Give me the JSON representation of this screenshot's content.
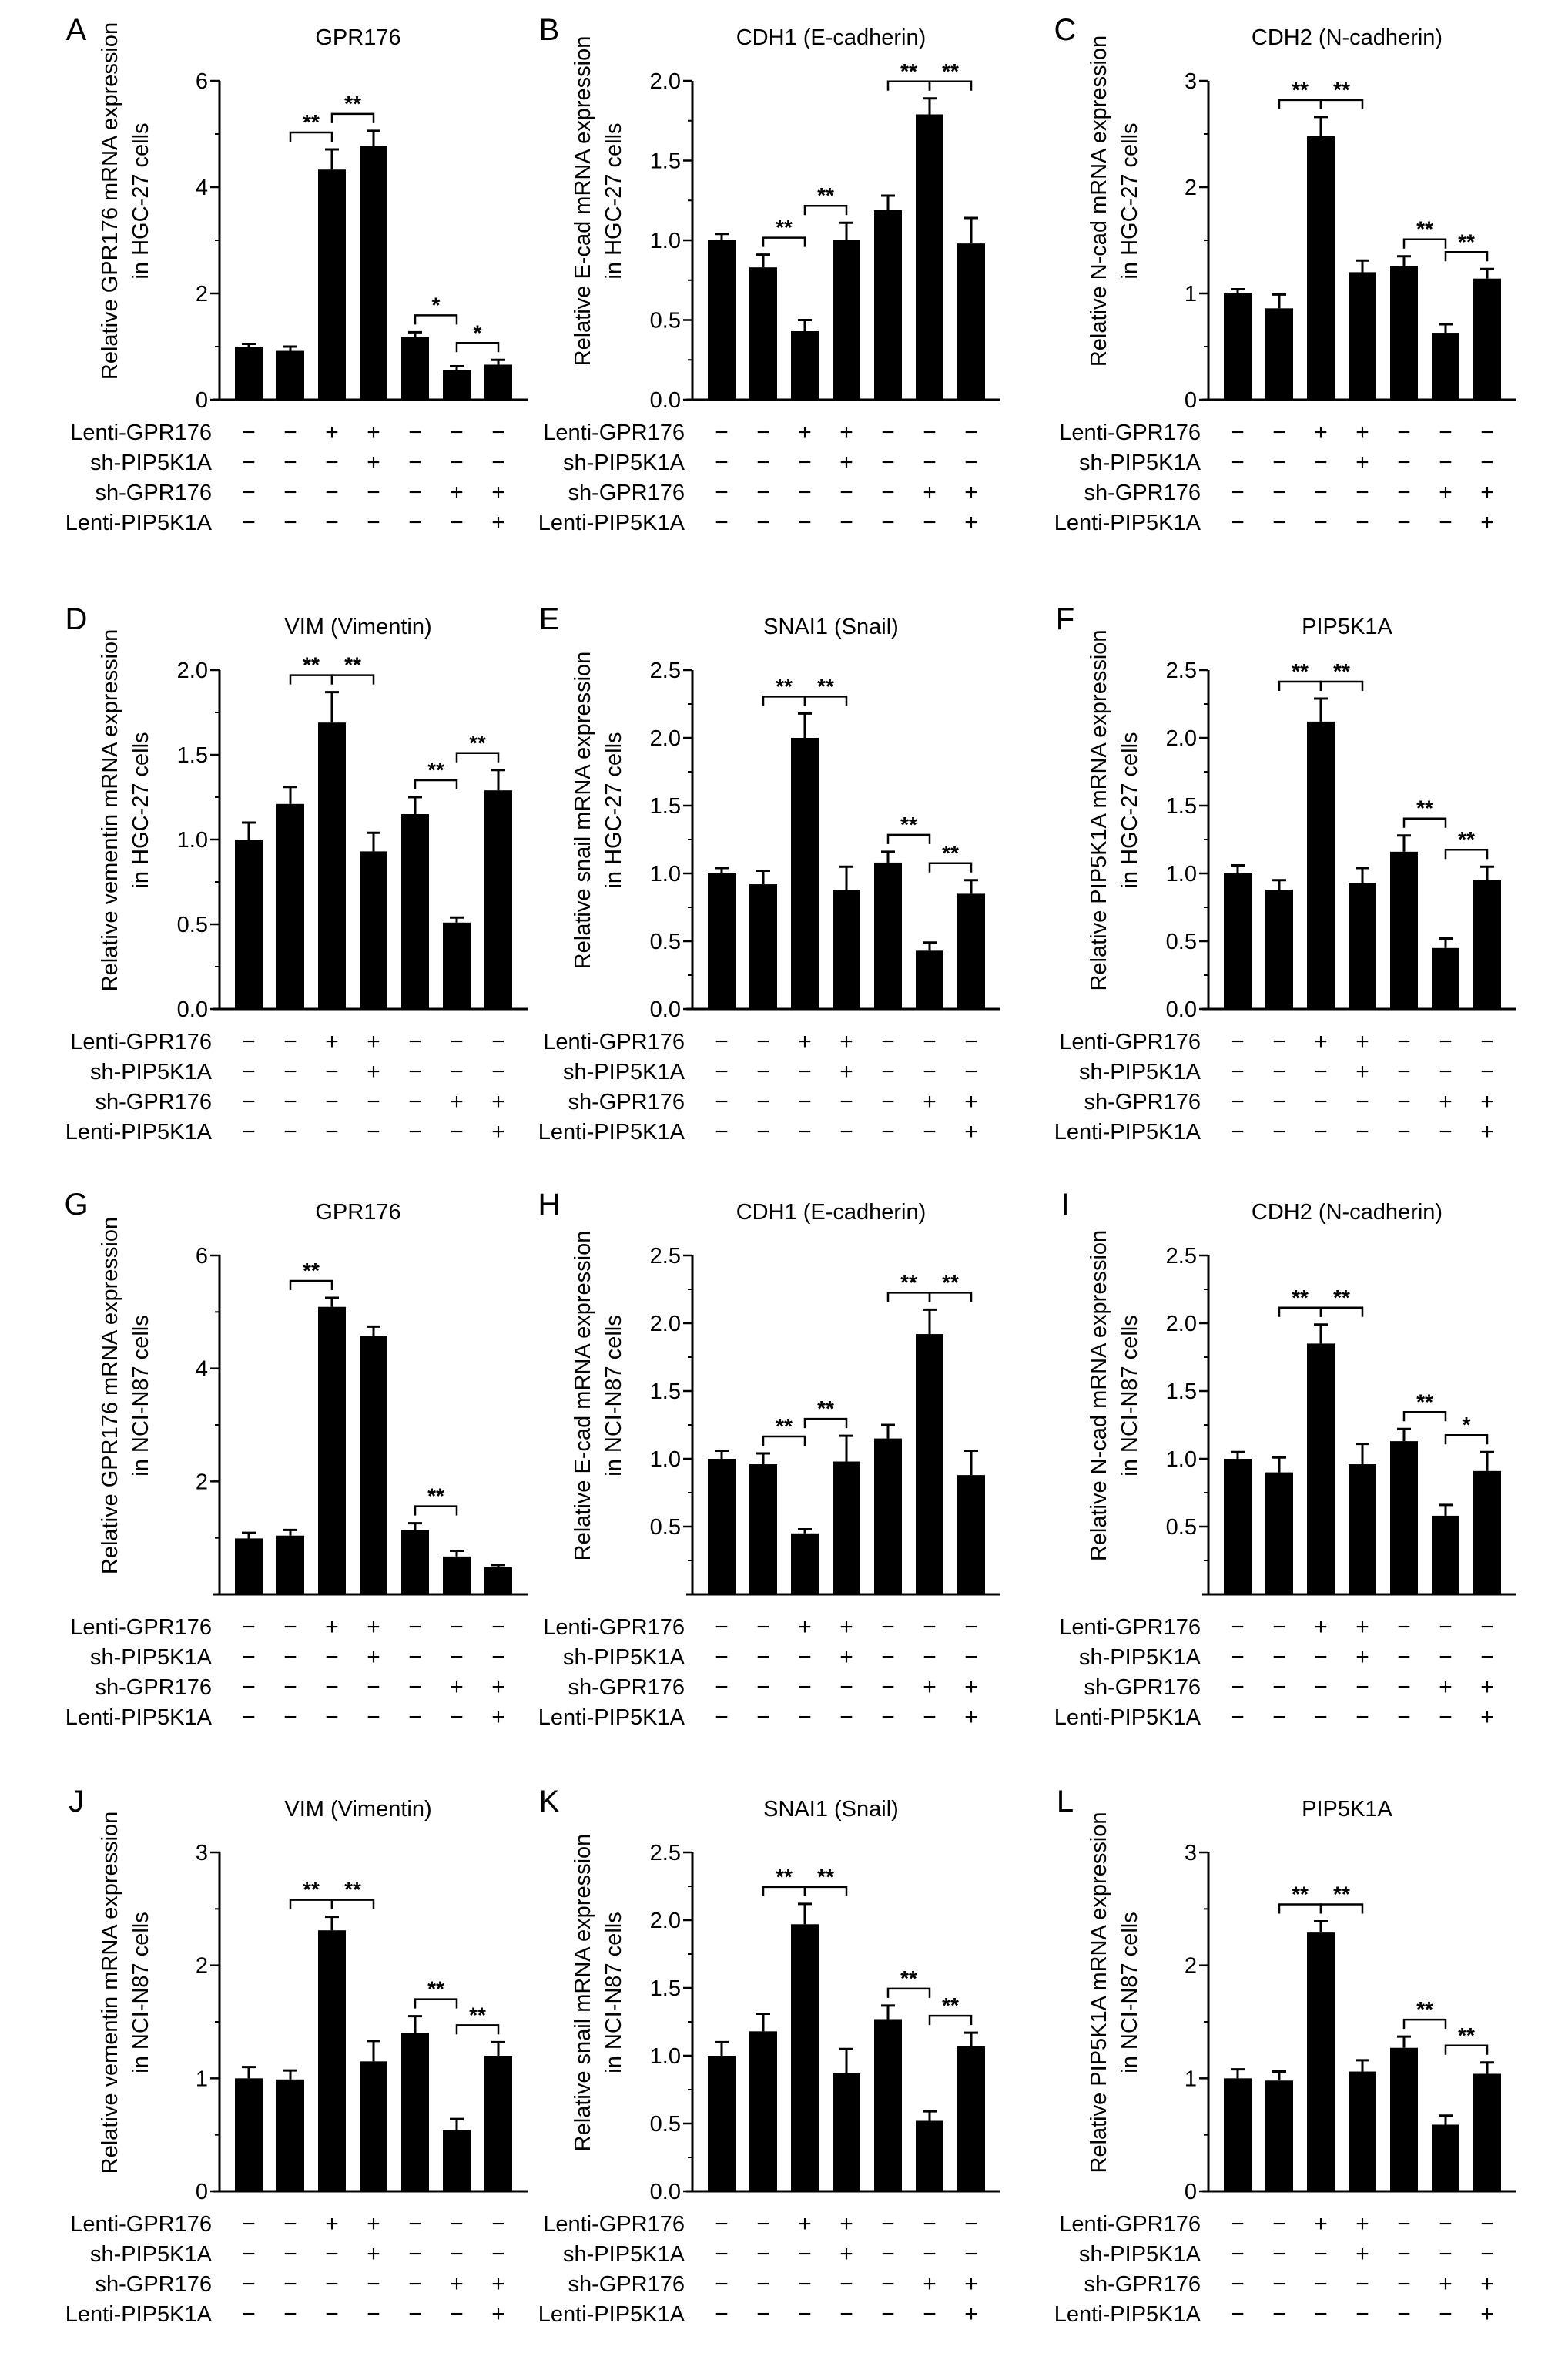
{
  "conditions": {
    "labels": [
      "Lenti-GPR176",
      "sh-PIP5K1A",
      "sh-GPR176",
      "Lenti-PIP5K1A"
    ],
    "signs": [
      [
        "−",
        "−",
        "+",
        "+",
        "−",
        "−",
        "−"
      ],
      [
        "−",
        "−",
        "−",
        "+",
        "−",
        "−",
        "−"
      ],
      [
        "−",
        "−",
        "−",
        "−",
        "−",
        "+",
        "+"
      ],
      [
        "−",
        "−",
        "−",
        "−",
        "−",
        "−",
        "+"
      ]
    ]
  },
  "chart_data": [
    {
      "type": "bar",
      "letter": "A",
      "title": "GPR176",
      "ylabel": [
        "Relative GPR176 mRNA expression",
        "in HGC-27 cells"
      ],
      "ylim": [
        0,
        6
      ],
      "ticks": [
        "0",
        "2",
        "4",
        "6"
      ],
      "tick_values": [
        0,
        2,
        4,
        6
      ],
      "values": [
        1.0,
        0.92,
        4.33,
        4.78,
        1.18,
        0.56,
        0.66
      ],
      "errors": [
        0.05,
        0.08,
        0.38,
        0.28,
        0.09,
        0.07,
        0.09
      ],
      "significance": [
        {
          "bars": [
            1,
            2
          ],
          "label": "**"
        },
        {
          "bars": [
            2,
            3
          ],
          "label": "**"
        },
        {
          "bars": [
            4,
            5
          ],
          "label": "*"
        },
        {
          "bars": [
            5,
            6
          ],
          "label": "*"
        }
      ]
    },
    {
      "type": "bar",
      "letter": "B",
      "title": "CDH1 (E-cadherin)",
      "ylabel": [
        "Relative E-cad mRNA expression",
        "in HGC-27 cells"
      ],
      "ylim": [
        0,
        2
      ],
      "ticks": [
        "0.0",
        "0.5",
        "1.0",
        "1.5",
        "2.0"
      ],
      "tick_values": [
        0,
        0.5,
        1,
        1.5,
        2
      ],
      "values": [
        1.0,
        0.83,
        0.43,
        1.0,
        1.19,
        1.79,
        0.98
      ],
      "errors": [
        0.04,
        0.08,
        0.07,
        0.11,
        0.09,
        0.1,
        0.16
      ],
      "significance": [
        {
          "bars": [
            1,
            2
          ],
          "label": "**"
        },
        {
          "bars": [
            2,
            3
          ],
          "label": "**"
        },
        {
          "bars": [
            4,
            5
          ],
          "label": "**"
        },
        {
          "bars": [
            5,
            6
          ],
          "label": "**"
        }
      ]
    },
    {
      "type": "bar",
      "letter": "C",
      "title": "CDH2 (N-cadherin)",
      "ylabel": [
        "Relative N-cad mRNA expression",
        "in HGC-27 cells"
      ],
      "ylim": [
        0,
        3
      ],
      "ticks": [
        "0",
        "1",
        "2",
        "3"
      ],
      "tick_values": [
        0,
        1,
        2,
        3
      ],
      "values": [
        1.0,
        0.86,
        2.48,
        1.2,
        1.26,
        0.63,
        1.14
      ],
      "errors": [
        0.04,
        0.13,
        0.18,
        0.11,
        0.09,
        0.08,
        0.09
      ],
      "significance": [
        {
          "bars": [
            1,
            2
          ],
          "label": "**"
        },
        {
          "bars": [
            2,
            3
          ],
          "label": "**"
        },
        {
          "bars": [
            4,
            5
          ],
          "label": "**"
        },
        {
          "bars": [
            5,
            6
          ],
          "label": "**"
        }
      ]
    },
    {
      "type": "bar",
      "letter": "D",
      "title": "VIM (Vimentin)",
      "ylabel": [
        "Relative vementin mRNA expression",
        "in HGC-27 cells"
      ],
      "ylim": [
        0,
        2
      ],
      "ticks": [
        "0.0",
        "0.5",
        "1.0",
        "1.5",
        "2.0"
      ],
      "tick_values": [
        0,
        0.5,
        1,
        1.5,
        2
      ],
      "values": [
        1.0,
        1.21,
        1.69,
        0.93,
        1.15,
        0.51,
        1.29
      ],
      "errors": [
        0.1,
        0.1,
        0.18,
        0.11,
        0.1,
        0.03,
        0.12
      ],
      "significance": [
        {
          "bars": [
            1,
            2
          ],
          "label": "**"
        },
        {
          "bars": [
            2,
            3
          ],
          "label": "**"
        },
        {
          "bars": [
            4,
            5
          ],
          "label": "**"
        },
        {
          "bars": [
            5,
            6
          ],
          "label": "**"
        }
      ]
    },
    {
      "type": "bar",
      "letter": "E",
      "title": "SNAI1 (Snail)",
      "ylabel": [
        "Relative snail mRNA expression",
        "in HGC-27 cells"
      ],
      "ylim": [
        0,
        2.5
      ],
      "ticks": [
        "0.0",
        "0.5",
        "1.0",
        "1.5",
        "2.0",
        "2.5"
      ],
      "tick_values": [
        0,
        0.5,
        1,
        1.5,
        2,
        2.5
      ],
      "values": [
        1.0,
        0.92,
        2.0,
        0.88,
        1.08,
        0.43,
        0.85
      ],
      "errors": [
        0.04,
        0.1,
        0.18,
        0.17,
        0.08,
        0.06,
        0.1
      ],
      "significance": [
        {
          "bars": [
            1,
            2
          ],
          "label": "**"
        },
        {
          "bars": [
            2,
            3
          ],
          "label": "**"
        },
        {
          "bars": [
            4,
            5
          ],
          "label": "**"
        },
        {
          "bars": [
            5,
            6
          ],
          "label": "**"
        }
      ]
    },
    {
      "type": "bar",
      "letter": "F",
      "title": "PIP5K1A",
      "ylabel": [
        "Relative PIP5K1A mRNA expression",
        "in HGC-27 cells"
      ],
      "ylim": [
        0,
        2.5
      ],
      "ticks": [
        "0.0",
        "0.5",
        "1.0",
        "1.5",
        "2.0",
        "2.5"
      ],
      "tick_values": [
        0,
        0.5,
        1,
        1.5,
        2,
        2.5
      ],
      "values": [
        1.0,
        0.88,
        2.12,
        0.93,
        1.16,
        0.45,
        0.95
      ],
      "errors": [
        0.06,
        0.07,
        0.17,
        0.11,
        0.12,
        0.07,
        0.1
      ],
      "significance": [
        {
          "bars": [
            1,
            2
          ],
          "label": "**"
        },
        {
          "bars": [
            2,
            3
          ],
          "label": "**"
        },
        {
          "bars": [
            4,
            5
          ],
          "label": "**"
        },
        {
          "bars": [
            5,
            6
          ],
          "label": "**"
        }
      ]
    },
    {
      "type": "bar",
      "letter": "G",
      "title": "GPR176",
      "ylabel": [
        "Relative GPR176 mRNA expression",
        "in NCI-N87 cells"
      ],
      "ylim": [
        0,
        6
      ],
      "ticks": [
        "2",
        "4",
        "6"
      ],
      "tick_values": [
        2,
        4,
        6
      ],
      "values": [
        0.99,
        1.04,
        5.09,
        4.58,
        1.14,
        0.67,
        0.48
      ],
      "errors": [
        0.1,
        0.1,
        0.16,
        0.16,
        0.12,
        0.1,
        0.04
      ],
      "significance": [
        {
          "bars": [
            1,
            2
          ],
          "label": "**"
        },
        {
          "bars": [
            4,
            5
          ],
          "label": "**"
        }
      ]
    },
    {
      "type": "bar",
      "letter": "H",
      "title": "CDH1 (E-cadherin)",
      "ylabel": [
        "Relative E-cad mRNA expression",
        "in NCI-N87 cells"
      ],
      "ylim": [
        0,
        2.5
      ],
      "ticks": [
        "0.5",
        "1.0",
        "1.5",
        "2.0",
        "2.5"
      ],
      "tick_values": [
        0.5,
        1,
        1.5,
        2,
        2.5
      ],
      "values": [
        1.0,
        0.96,
        0.45,
        0.98,
        1.15,
        1.92,
        0.88
      ],
      "errors": [
        0.06,
        0.08,
        0.03,
        0.19,
        0.1,
        0.18,
        0.18
      ],
      "significance": [
        {
          "bars": [
            1,
            2
          ],
          "label": "**"
        },
        {
          "bars": [
            2,
            3
          ],
          "label": "**"
        },
        {
          "bars": [
            4,
            5
          ],
          "label": "**"
        },
        {
          "bars": [
            5,
            6
          ],
          "label": "**"
        }
      ]
    },
    {
      "type": "bar",
      "letter": "I",
      "title": "CDH2 (N-cadherin)",
      "ylabel": [
        "Relative N-cad mRNA expression",
        "in NCI-N87 cells"
      ],
      "ylim": [
        0,
        2.5
      ],
      "ticks": [
        "0.5",
        "1.0",
        "1.5",
        "2.0",
        "2.5"
      ],
      "tick_values": [
        0.5,
        1,
        1.5,
        2,
        2.5
      ],
      "values": [
        1.0,
        0.9,
        1.85,
        0.96,
        1.13,
        0.58,
        0.91
      ],
      "errors": [
        0.05,
        0.11,
        0.14,
        0.15,
        0.09,
        0.08,
        0.14
      ],
      "significance": [
        {
          "bars": [
            1,
            2
          ],
          "label": "**"
        },
        {
          "bars": [
            2,
            3
          ],
          "label": "**"
        },
        {
          "bars": [
            4,
            5
          ],
          "label": "**"
        },
        {
          "bars": [
            5,
            6
          ],
          "label": "*"
        }
      ]
    },
    {
      "type": "bar",
      "letter": "J",
      "title": "VIM (Vimentin)",
      "ylabel": [
        "Relative vementin mRNA expression",
        "in NCI-N87 cells"
      ],
      "ylim": [
        0,
        3
      ],
      "ticks": [
        "0",
        "1",
        "2",
        "3"
      ],
      "tick_values": [
        0,
        1,
        2,
        3
      ],
      "values": [
        1.0,
        0.99,
        2.31,
        1.15,
        1.4,
        0.54,
        1.2
      ],
      "errors": [
        0.1,
        0.08,
        0.12,
        0.18,
        0.15,
        0.1,
        0.12
      ],
      "significance": [
        {
          "bars": [
            1,
            2
          ],
          "label": "**"
        },
        {
          "bars": [
            2,
            3
          ],
          "label": "**"
        },
        {
          "bars": [
            4,
            5
          ],
          "label": "**"
        },
        {
          "bars": [
            5,
            6
          ],
          "label": "**"
        }
      ]
    },
    {
      "type": "bar",
      "letter": "K",
      "title": "SNAI1 (Snail)",
      "ylabel": [
        "Relative snail mRNA expression",
        "in NCI-N87 cells"
      ],
      "ylim": [
        0,
        2.5
      ],
      "ticks": [
        "0.0",
        "0.5",
        "1.0",
        "1.5",
        "2.0",
        "2.5"
      ],
      "tick_values": [
        0,
        0.5,
        1,
        1.5,
        2,
        2.5
      ],
      "values": [
        1.0,
        1.18,
        1.97,
        0.87,
        1.27,
        0.52,
        1.07
      ],
      "errors": [
        0.1,
        0.13,
        0.15,
        0.18,
        0.1,
        0.07,
        0.1
      ],
      "significance": [
        {
          "bars": [
            1,
            2
          ],
          "label": "**"
        },
        {
          "bars": [
            2,
            3
          ],
          "label": "**"
        },
        {
          "bars": [
            4,
            5
          ],
          "label": "**"
        },
        {
          "bars": [
            5,
            6
          ],
          "label": "**"
        }
      ]
    },
    {
      "type": "bar",
      "letter": "L",
      "title": "PIP5K1A",
      "ylabel": [
        "Relative PIP5K1A mRNA expression",
        "in NCI-N87 cells"
      ],
      "ylim": [
        0,
        3
      ],
      "ticks": [
        "0",
        "1",
        "2",
        "3"
      ],
      "tick_values": [
        0,
        1,
        2,
        3
      ],
      "values": [
        1.0,
        0.98,
        2.29,
        1.06,
        1.27,
        0.59,
        1.04
      ],
      "errors": [
        0.08,
        0.08,
        0.1,
        0.1,
        0.1,
        0.08,
        0.1
      ],
      "significance": [
        {
          "bars": [
            1,
            2
          ],
          "label": "**"
        },
        {
          "bars": [
            2,
            3
          ],
          "label": "**"
        },
        {
          "bars": [
            4,
            5
          ],
          "label": "**"
        },
        {
          "bars": [
            5,
            6
          ],
          "label": "**"
        }
      ]
    }
  ]
}
